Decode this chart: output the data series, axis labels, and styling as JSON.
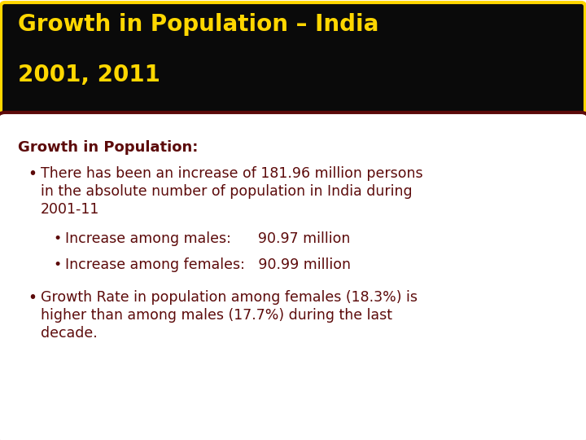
{
  "title_line1": "Growth in Population – India",
  "title_line2": "2001, 2011",
  "title_bg_color": "#0a0a0a",
  "title_border_color": "#FFD700",
  "title_text_color": "#FFD700",
  "body_bg_color": "#FFFFFF",
  "body_border_color": "#5C0A0A",
  "body_text_color": "#5C0A0A",
  "subtitle": "Growth in Population:",
  "bullet1_line1": "There has been an increase of 181.96 million persons",
  "bullet1_line2": "in the absolute number of population in India during",
  "bullet1_line3": "2001-11",
  "sub_bullet1": "Increase among males:      90.97 million",
  "sub_bullet2": "Increase among females:   90.99 million",
  "bullet2_line1": "Growth Rate in population among females (18.3%) is",
  "bullet2_line2": "higher than among males (17.7%) during the last",
  "bullet2_line3": "decade.",
  "fig_bg_color": "#FFFFFF",
  "title_fontsize": 20,
  "subtitle_fontsize": 13,
  "body_fontsize": 12.5
}
